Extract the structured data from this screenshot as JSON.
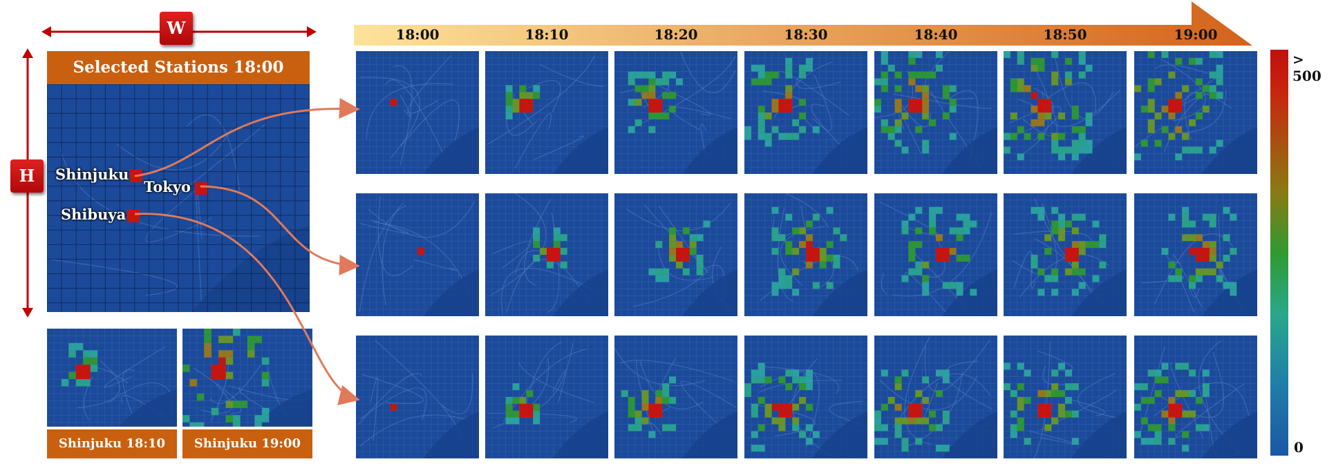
{
  "timeline": {
    "times": [
      "18:00",
      "18:10",
      "18:20",
      "18:30",
      "18:40",
      "18:50",
      "19:00"
    ]
  },
  "colorbar": {
    "max_label": "> 500",
    "min_label": "0"
  },
  "dimensions": {
    "width_label": "W",
    "height_label": "H"
  },
  "main_map": {
    "title": "Selected Stations 18:00",
    "stations": [
      "Shinjuku",
      "Tokyo",
      "Shibuya"
    ]
  },
  "thumbnails": [
    {
      "caption": "Shinjuku 18:10"
    },
    {
      "caption": "Shinjuku 19:00"
    }
  ],
  "rows": [
    {
      "station": "Shinjuku",
      "spread_levels": [
        0,
        1,
        2,
        3,
        4,
        5,
        5
      ]
    },
    {
      "station": "Tokyo",
      "spread_levels": [
        0,
        1,
        2,
        3,
        3,
        3,
        3
      ]
    },
    {
      "station": "Shibuya",
      "spread_levels": [
        0,
        1,
        2,
        3,
        3,
        3,
        3
      ]
    }
  ],
  "colors": {
    "map_bg": "#1c4a9a",
    "banner": "#c8600f",
    "arrow_start": "#fde39a",
    "arrow_end": "#d4621a",
    "connector": "#e07a5a",
    "hot": "#c8140f"
  }
}
